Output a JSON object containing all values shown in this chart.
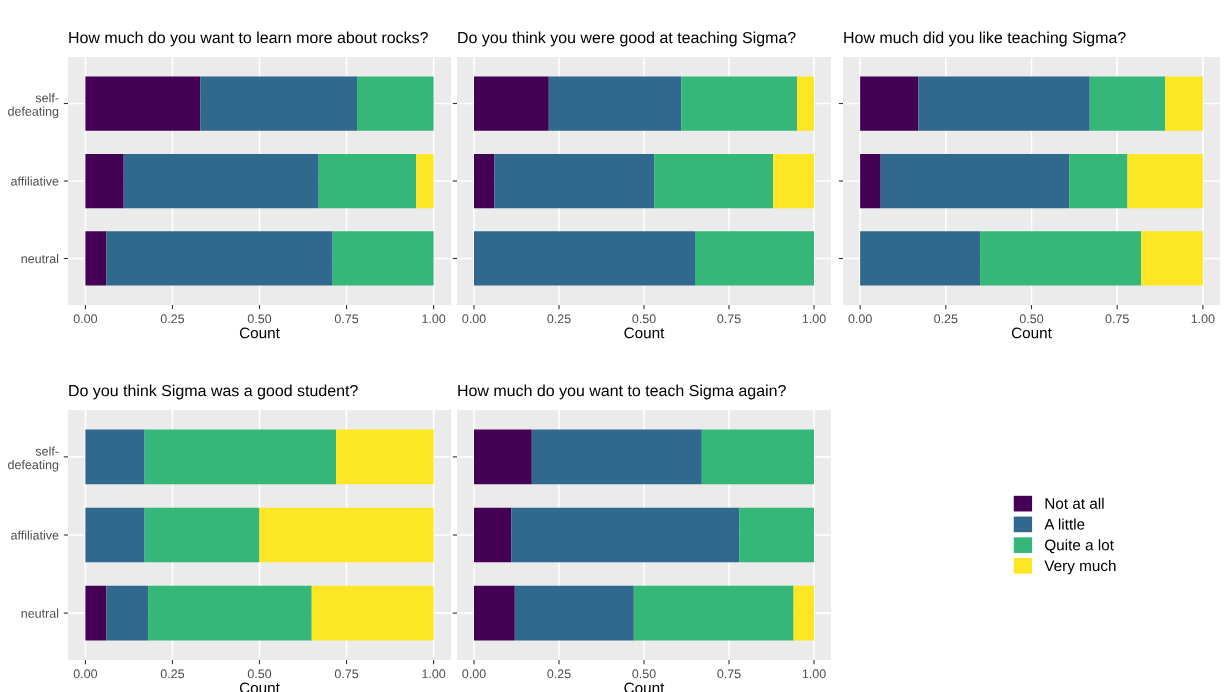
{
  "chart_data": [
    {
      "type": "bar",
      "orientation": "horizontal",
      "stacked": true,
      "title": "How much do you want to learn more about rocks?",
      "xlabel": "Count",
      "categories": [
        "self-\ndefeating",
        "affiliative",
        "neutral"
      ],
      "xlim": [
        -0.05,
        1.05
      ],
      "xticks": [
        {
          "value": 0,
          "label": "0.00"
        },
        {
          "value": 0.25,
          "label": "0.25"
        },
        {
          "value": 0.5,
          "label": "0.50"
        },
        {
          "value": 0.75,
          "label": "0.75"
        },
        {
          "value": 1,
          "label": "1.00"
        }
      ],
      "grid": true,
      "legend": "right",
      "series": [
        {
          "name": "Not at all",
          "color": "#440154",
          "values": [
            0.33,
            0.11,
            0.06
          ]
        },
        {
          "name": "A little",
          "color": "#31688e",
          "values": [
            0.45,
            0.56,
            0.65
          ]
        },
        {
          "name": "Quite a lot",
          "color": "#35b779",
          "values": [
            0.22,
            0.28,
            0.29
          ]
        },
        {
          "name": "Very much",
          "color": "#fde725",
          "values": [
            0,
            0.05,
            0
          ]
        }
      ]
    },
    {
      "type": "bar",
      "orientation": "horizontal",
      "stacked": true,
      "title": "Do you think you were good at teaching Sigma?",
      "xlabel": "Count",
      "categories": [
        null,
        null,
        null
      ],
      "xlim": [
        -0.05,
        1.05
      ],
      "xticks": [
        {
          "value": 0,
          "label": "0.00"
        },
        {
          "value": 0.25,
          "label": "0.25"
        },
        {
          "value": 0.5,
          "label": "0.50"
        },
        {
          "value": 0.75,
          "label": "0.75"
        },
        {
          "value": 1,
          "label": "1.00"
        }
      ],
      "grid": true,
      "series": [
        {
          "color": "#440154",
          "values": [
            0.22,
            0.06,
            0
          ]
        },
        {
          "color": "#31688e",
          "values": [
            0.39,
            0.47,
            0.65
          ]
        },
        {
          "color": "#35b779",
          "values": [
            0.34,
            0.35,
            0.35
          ]
        },
        {
          "color": "#fde725",
          "values": [
            0.05,
            0.12,
            0
          ]
        }
      ]
    },
    {
      "type": "bar",
      "orientation": "horizontal",
      "stacked": true,
      "title": "How much did you like teaching Sigma?",
      "xlabel": "Count",
      "categories": [
        null,
        null,
        null
      ],
      "xlim": [
        -0.05,
        1.05
      ],
      "xticks": [
        {
          "value": 0,
          "label": "0.00"
        },
        {
          "value": 0.25,
          "label": "0.25"
        },
        {
          "value": 0.5,
          "label": "0.50"
        },
        {
          "value": 0.75,
          "label": "0.75"
        },
        {
          "value": 1,
          "label": "1.00"
        }
      ],
      "grid": true,
      "series": [
        {
          "color": "#440154",
          "values": [
            0.17,
            0.06,
            0
          ]
        },
        {
          "color": "#31688e",
          "values": [
            0.5,
            0.55,
            0.35
          ]
        },
        {
          "color": "#35b779",
          "values": [
            0.22,
            0.17,
            0.47
          ]
        },
        {
          "color": "#fde725",
          "values": [
            0.11,
            0.22,
            0.18
          ]
        }
      ]
    },
    {
      "type": "bar",
      "orientation": "horizontal",
      "stacked": true,
      "title": "Do you think Sigma was a good student?",
      "xlabel": "Count",
      "categories": [
        "self-\ndefeating",
        "affiliative",
        "neutral"
      ],
      "xlim": [
        -0.05,
        1.05
      ],
      "xticks": [
        {
          "value": 0,
          "label": "0.00"
        },
        {
          "value": 0.25,
          "label": "0.25"
        },
        {
          "value": 0.5,
          "label": "0.50"
        },
        {
          "value": 0.75,
          "label": "0.75"
        },
        {
          "value": 1,
          "label": "1.00"
        }
      ],
      "grid": true,
      "series": [
        {
          "color": "#440154",
          "values": [
            0,
            0,
            0.06
          ]
        },
        {
          "color": "#31688e",
          "values": [
            0.17,
            0.17,
            0.12
          ]
        },
        {
          "color": "#35b779",
          "values": [
            0.55,
            0.33,
            0.47
          ]
        },
        {
          "color": "#fde725",
          "values": [
            0.28,
            0.5,
            0.35
          ]
        }
      ]
    },
    {
      "type": "bar",
      "orientation": "horizontal",
      "stacked": true,
      "title": "How much do you want to teach Sigma again?",
      "xlabel": "Count",
      "categories": [
        null,
        null,
        null
      ],
      "xlim": [
        -0.05,
        1.05
      ],
      "xticks": [
        {
          "value": 0,
          "label": "0.00"
        },
        {
          "value": 0.25,
          "label": "0.25"
        },
        {
          "value": 0.5,
          "label": "0.50"
        },
        {
          "value": 0.75,
          "label": "0.75"
        },
        {
          "value": 1,
          "label": "1.00"
        }
      ],
      "grid": true,
      "series": [
        {
          "color": "#440154",
          "values": [
            0.17,
            0.11,
            0.12
          ]
        },
        {
          "color": "#31688e",
          "values": [
            0.5,
            0.67,
            0.35
          ]
        },
        {
          "color": "#35b779",
          "values": [
            0.33,
            0.22,
            0.47
          ]
        },
        {
          "color": "#fde725",
          "values": [
            0,
            0,
            0.06
          ]
        }
      ]
    }
  ]
}
